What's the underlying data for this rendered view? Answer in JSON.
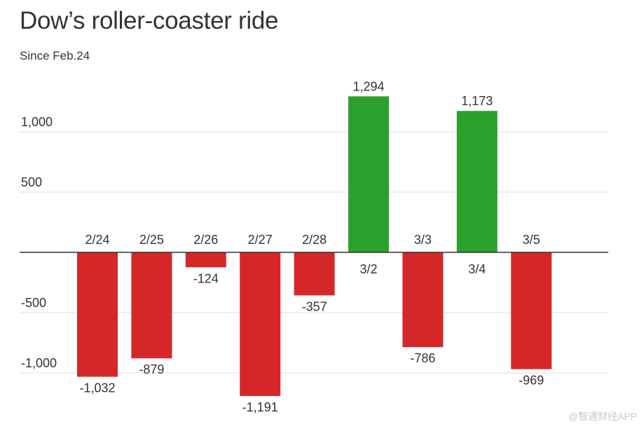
{
  "chart_data": {
    "type": "bar",
    "title": "Dow’s roller-coaster ride",
    "subtitle": "Since Feb.24",
    "categories": [
      "2/24",
      "2/25",
      "2/26",
      "2/27",
      "2/28",
      "3/2",
      "3/3",
      "3/4",
      "3/5"
    ],
    "values": [
      -1032,
      -879,
      -124,
      -1191,
      -357,
      1294,
      -786,
      1173,
      -969
    ],
    "value_labels": [
      "-1,032",
      "-879",
      "-124",
      "-1,191",
      "-357",
      "1,294",
      "-786",
      "1,173",
      "-969"
    ],
    "yticks": [
      1000,
      500,
      -500,
      -1000
    ],
    "ytick_labels": [
      "1,000",
      "500",
      "-500",
      "-1,000"
    ],
    "ylim": [
      -1300,
      1400
    ],
    "grid": true,
    "colors": {
      "positive": "#2ca02c",
      "negative": "#d62728",
      "grid": "#dddddd",
      "zero_line": "#333333"
    }
  },
  "watermark": "@智通财经APP"
}
